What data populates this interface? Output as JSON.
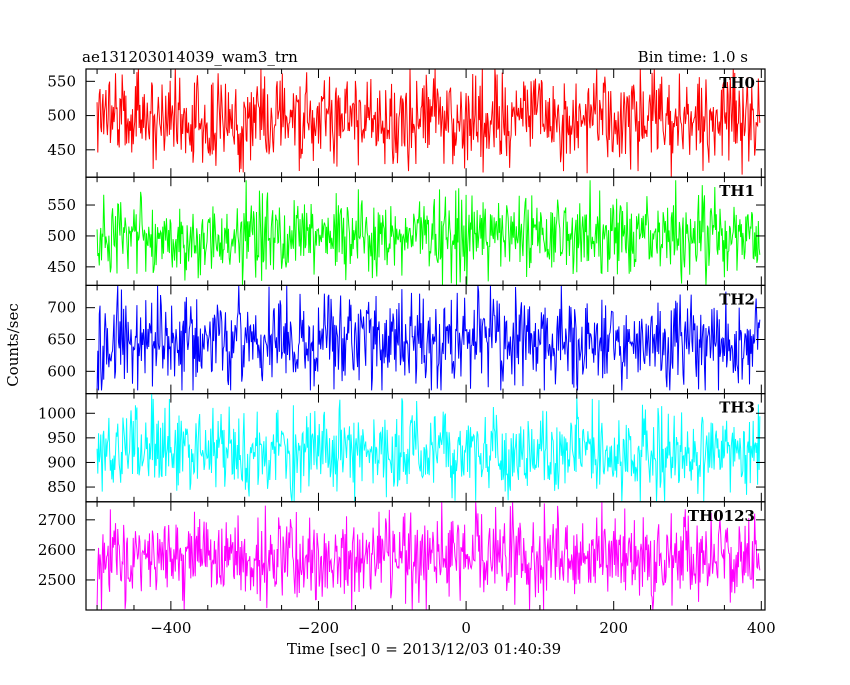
{
  "chart_data": {
    "type": "line",
    "title": "ae131203014039_wam3_trn",
    "subtitle": "Bin time: 1.0 s",
    "xlabel": "Time [sec] 0 = 2013/12/03 01:40:39",
    "ylabel": "Counts/sec",
    "xlim": [
      -515,
      405
    ],
    "xticks": [
      -400,
      -200,
      0,
      200,
      400
    ],
    "xtick_labels": [
      "−400",
      "−200",
      "0",
      "200",
      "400"
    ],
    "data_x_range": [
      -500,
      398
    ],
    "bin_time_s": 1.0,
    "panels": [
      {
        "name": "TH0",
        "color": "#ff0000",
        "ylim": [
          410,
          568
        ],
        "yticks": [
          450,
          500,
          550
        ],
        "ytick_labels": [
          "450",
          "500",
          "550"
        ],
        "mean": 495,
        "spread": 32,
        "range": [
          410,
          570
        ]
      },
      {
        "name": "TH1",
        "color": "#00ff00",
        "ylim": [
          420,
          595
        ],
        "yticks": [
          450,
          500,
          550
        ],
        "ytick_labels": [
          "450",
          "500",
          "550"
        ],
        "mean": 500,
        "spread": 32,
        "range": [
          420,
          590
        ]
      },
      {
        "name": "TH2",
        "color": "#0000ff",
        "ylim": [
          565,
          735
        ],
        "yticks": [
          600,
          650,
          700
        ],
        "ytick_labels": [
          "600",
          "650",
          "700"
        ],
        "mean": 645,
        "spread": 38,
        "range": [
          570,
          735
        ]
      },
      {
        "name": "TH3",
        "color": "#00ffff",
        "ylim": [
          820,
          1040
        ],
        "yticks": [
          850,
          900,
          950,
          1000
        ],
        "ytick_labels": [
          "850",
          "900",
          "950",
          "1000"
        ],
        "mean": 920,
        "spread": 42,
        "range": [
          820,
          1040
        ]
      },
      {
        "name": "TH0123",
        "color": "#ff00ff",
        "ylim": [
          2400,
          2760
        ],
        "yticks": [
          2500,
          2600,
          2700
        ],
        "ytick_labels": [
          "2500",
          "2600",
          "2700"
        ],
        "mean": 2575,
        "spread": 72,
        "range": [
          2400,
          2760
        ]
      }
    ],
    "grid": false,
    "legend": "panel labels top-right"
  }
}
